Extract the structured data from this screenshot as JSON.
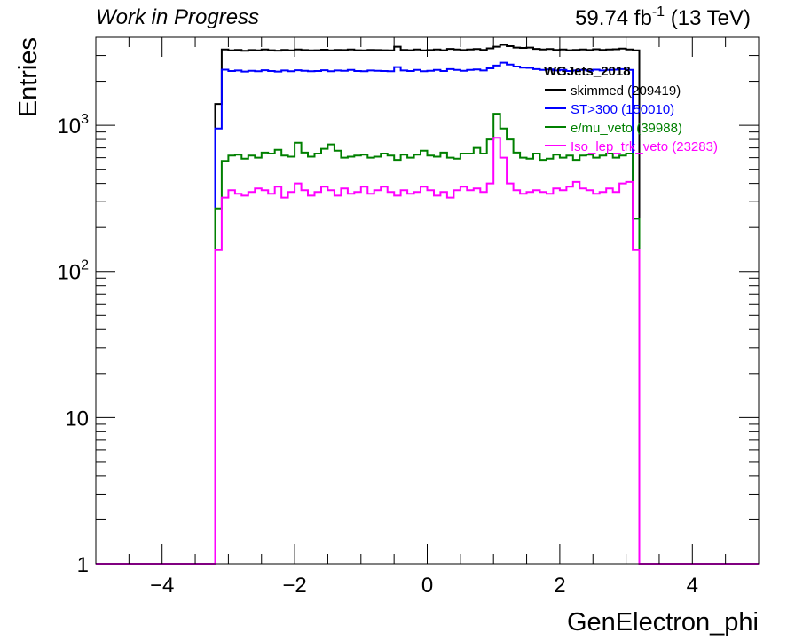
{
  "header": {
    "left_label": "Work in Progress",
    "lumi_prefix": "59.74 fb",
    "lumi_exp": "-1",
    "lumi_suffix": " (13 TeV)"
  },
  "chart_data": {
    "type": "histogram",
    "xlabel": "GenElectron_phi",
    "ylabel": "Entries",
    "xlim": [
      -5,
      5
    ],
    "ylim": [
      1,
      4000
    ],
    "yscale": "log",
    "xticks": [
      -4,
      -2,
      0,
      2,
      4
    ],
    "xtick_labels": [
      "−4",
      "−2",
      "0",
      "2",
      "4"
    ],
    "yticks": [
      {
        "value": 1,
        "base": "1",
        "exp": ""
      },
      {
        "value": 10,
        "base": "10",
        "exp": ""
      },
      {
        "value": 100,
        "base": "10",
        "exp": "2"
      },
      {
        "value": 1000,
        "base": "10",
        "exp": "3"
      }
    ],
    "grid": false,
    "legend": {
      "title": "WGJets_2018",
      "position": "top-right",
      "entries": [
        {
          "label": "skimmed (209419)",
          "color": "#000000"
        },
        {
          "label": "ST>300 (150010)",
          "color": "#0000ff"
        },
        {
          "label": "e/mu_veto (39988)",
          "color": "#008000"
        },
        {
          "label": "Iso_lep_trk_veto (23283)",
          "color": "#ff00ff"
        }
      ]
    },
    "binning": {
      "xmin": -3.2,
      "xmax": 3.2,
      "nbins": 64
    },
    "series": [
      {
        "name": "skimmed (209419)",
        "color": "#000000",
        "values": [
          1400,
          3300,
          3250,
          3280,
          3230,
          3270,
          3250,
          3300,
          3260,
          3240,
          3280,
          3250,
          3300,
          3270,
          3250,
          3260,
          3290,
          3250,
          3280,
          3270,
          3300,
          3260,
          3250,
          3280,
          3270,
          3260,
          3250,
          3450,
          3280,
          3260,
          3300,
          3250,
          3270,
          3300,
          3260,
          3330,
          3300,
          3270,
          3300,
          3320,
          3280,
          3360,
          3450,
          3550,
          3480,
          3400,
          3380,
          3400,
          3330,
          3300,
          3320,
          3280,
          3300,
          3260,
          3280,
          3300,
          3270,
          3310,
          3280,
          3300,
          3310,
          3350,
          3300,
          3250
        ]
      },
      {
        "name": "ST>300 (150010)",
        "color": "#0000ff",
        "values": [
          950,
          2400,
          2350,
          2370,
          2330,
          2360,
          2340,
          2380,
          2350,
          2330,
          2370,
          2340,
          2380,
          2360,
          2340,
          2350,
          2380,
          2340,
          2370,
          2360,
          2390,
          2350,
          2340,
          2370,
          2360,
          2350,
          2340,
          2500,
          2370,
          2350,
          2390,
          2340,
          2360,
          2390,
          2350,
          2420,
          2390,
          2360,
          2390,
          2410,
          2370,
          2450,
          2560,
          2680,
          2600,
          2520,
          2480,
          2470,
          2420,
          2390,
          2410,
          2370,
          2390,
          2350,
          2370,
          2390,
          2360,
          2400,
          2370,
          2390,
          2400,
          2420,
          2390,
          230
        ]
      },
      {
        "name": "e/mu_veto (39988)",
        "color": "#008000",
        "values": [
          270,
          570,
          620,
          630,
          590,
          620,
          600,
          650,
          640,
          680,
          620,
          610,
          760,
          650,
          610,
          640,
          690,
          740,
          670,
          600,
          610,
          620,
          630,
          600,
          610,
          640,
          620,
          580,
          630,
          600,
          630,
          670,
          620,
          610,
          650,
          600,
          590,
          640,
          640,
          700,
          640,
          800,
          1200,
          950,
          800,
          650,
          600,
          590,
          640,
          580,
          590,
          630,
          600,
          620,
          580,
          620,
          630,
          600,
          620,
          640,
          600,
          620,
          640,
          230
        ]
      },
      {
        "name": "Iso_lep_trk_veto (23283)",
        "color": "#ff00ff",
        "values": [
          140,
          320,
          360,
          340,
          330,
          350,
          370,
          360,
          340,
          380,
          320,
          350,
          400,
          360,
          330,
          350,
          380,
          360,
          330,
          370,
          340,
          350,
          380,
          340,
          360,
          380,
          350,
          330,
          360,
          340,
          350,
          380,
          360,
          330,
          350,
          320,
          360,
          380,
          360,
          370,
          350,
          400,
          820,
          600,
          400,
          360,
          340,
          350,
          360,
          350,
          340,
          370,
          360,
          380,
          410,
          370,
          360,
          340,
          350,
          370,
          350,
          400,
          410,
          140
        ]
      }
    ]
  }
}
